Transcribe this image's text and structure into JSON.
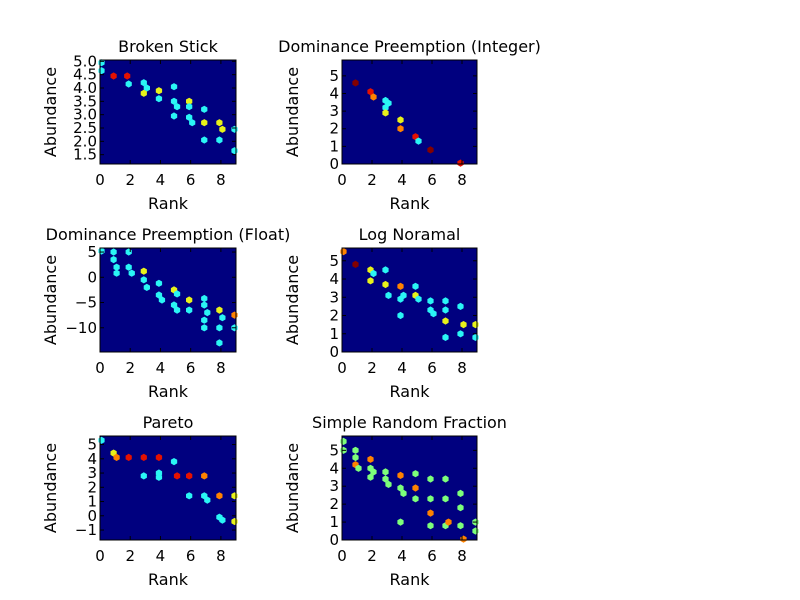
{
  "colors": {
    "background": "#00007f",
    "cyan": "#2af5f5",
    "green": "#7dff7a",
    "yellow": "#e8f21a",
    "orange": "#ff8200",
    "red": "#e41100",
    "darkred": "#830000"
  },
  "chart_data": [
    {
      "type": "heatmap",
      "title": "Broken Stick",
      "xlabel": "Rank",
      "ylabel": "Abundance",
      "xlim": [
        0,
        9
      ],
      "ylim": [
        1.15,
        5.05
      ],
      "xticks": [
        "0",
        "2",
        "4",
        "6",
        "8"
      ],
      "xtick_values": [
        0,
        2,
        4,
        6,
        8
      ],
      "yticks": [
        "1.5",
        "2.0",
        "2.5",
        "3.0",
        "3.5",
        "4.0",
        "4.5",
        "5.0"
      ],
      "ytick_values": [
        1.5,
        2.0,
        2.5,
        3.0,
        3.5,
        4.0,
        4.5,
        5.0
      ],
      "points": [
        {
          "x": 0.1,
          "y": 4.95,
          "c": "cyan"
        },
        {
          "x": 0.1,
          "y": 4.65,
          "c": "cyan"
        },
        {
          "x": 0.9,
          "y": 4.45,
          "c": "red"
        },
        {
          "x": 1.8,
          "y": 4.45,
          "c": "red"
        },
        {
          "x": 1.9,
          "y": 4.15,
          "c": "cyan"
        },
        {
          "x": 2.9,
          "y": 4.2,
          "c": "cyan"
        },
        {
          "x": 3.1,
          "y": 4.0,
          "c": "cyan"
        },
        {
          "x": 2.9,
          "y": 3.8,
          "c": "yellow"
        },
        {
          "x": 3.9,
          "y": 3.9,
          "c": "yellow"
        },
        {
          "x": 3.9,
          "y": 3.6,
          "c": "cyan"
        },
        {
          "x": 4.9,
          "y": 4.05,
          "c": "cyan"
        },
        {
          "x": 4.9,
          "y": 3.5,
          "c": "cyan"
        },
        {
          "x": 5.1,
          "y": 3.3,
          "c": "cyan"
        },
        {
          "x": 5.9,
          "y": 3.5,
          "c": "yellow"
        },
        {
          "x": 5.9,
          "y": 3.3,
          "c": "cyan"
        },
        {
          "x": 4.9,
          "y": 2.95,
          "c": "cyan"
        },
        {
          "x": 5.9,
          "y": 2.9,
          "c": "cyan"
        },
        {
          "x": 6.1,
          "y": 2.7,
          "c": "cyan"
        },
        {
          "x": 6.9,
          "y": 3.2,
          "c": "cyan"
        },
        {
          "x": 6.9,
          "y": 2.7,
          "c": "yellow"
        },
        {
          "x": 7.9,
          "y": 2.7,
          "c": "yellow"
        },
        {
          "x": 8.1,
          "y": 2.45,
          "c": "yellow"
        },
        {
          "x": 8.9,
          "y": 2.45,
          "c": "cyan"
        },
        {
          "x": 6.9,
          "y": 2.05,
          "c": "cyan"
        },
        {
          "x": 7.9,
          "y": 2.05,
          "c": "cyan"
        },
        {
          "x": 8.9,
          "y": 1.65,
          "c": "cyan"
        }
      ]
    },
    {
      "type": "heatmap",
      "title": "Dominance Preemption (Integer)",
      "xlabel": "Rank",
      "ylabel": "Abundance",
      "xlim": [
        0,
        9
      ],
      "ylim": [
        0,
        5.9
      ],
      "xticks": [
        "0",
        "2",
        "4",
        "6",
        "8"
      ],
      "xtick_values": [
        0,
        2,
        4,
        6,
        8
      ],
      "yticks": [
        "0",
        "1",
        "2",
        "3",
        "4",
        "5"
      ],
      "ytick_values": [
        0,
        1,
        2,
        3,
        4,
        5
      ],
      "points": [
        {
          "x": 0.9,
          "y": 4.6,
          "c": "darkred"
        },
        {
          "x": 1.9,
          "y": 4.1,
          "c": "red"
        },
        {
          "x": 2.1,
          "y": 3.8,
          "c": "orange"
        },
        {
          "x": 2.9,
          "y": 3.6,
          "c": "cyan"
        },
        {
          "x": 2.9,
          "y": 3.2,
          "c": "cyan"
        },
        {
          "x": 3.1,
          "y": 3.45,
          "c": "cyan"
        },
        {
          "x": 2.9,
          "y": 2.9,
          "c": "yellow"
        },
        {
          "x": 3.9,
          "y": 2.5,
          "c": "yellow"
        },
        {
          "x": 3.9,
          "y": 2.0,
          "c": "orange"
        },
        {
          "x": 4.9,
          "y": 1.55,
          "c": "red"
        },
        {
          "x": 5.1,
          "y": 1.3,
          "c": "cyan"
        },
        {
          "x": 5.9,
          "y": 0.8,
          "c": "darkred"
        },
        {
          "x": 7.9,
          "y": 0.05,
          "c": "red"
        }
      ]
    },
    {
      "type": "heatmap",
      "title": "Dominance Preemption (Float)",
      "xlabel": "Rank",
      "ylabel": "Abundance",
      "xlim": [
        0,
        9
      ],
      "ylim": [
        -14.8,
        5.8
      ],
      "xticks": [
        "0",
        "2",
        "4",
        "6",
        "8"
      ],
      "xtick_values": [
        0,
        2,
        4,
        6,
        8
      ],
      "yticks": [
        "5",
        "0",
        "−5",
        "−10"
      ],
      "ytick_values": [
        5,
        0,
        -5,
        -10
      ],
      "points": [
        {
          "x": 0.1,
          "y": 5.2,
          "c": "cyan"
        },
        {
          "x": 0.9,
          "y": 5.0,
          "c": "cyan"
        },
        {
          "x": 1.9,
          "y": 5.0,
          "c": "cyan"
        },
        {
          "x": 0.9,
          "y": 3.5,
          "c": "cyan"
        },
        {
          "x": 1.1,
          "y": 2.0,
          "c": "cyan"
        },
        {
          "x": 1.9,
          "y": 2.0,
          "c": "cyan"
        },
        {
          "x": 1.1,
          "y": 0.8,
          "c": "cyan"
        },
        {
          "x": 2.1,
          "y": 0.8,
          "c": "cyan"
        },
        {
          "x": 2.9,
          "y": 1.2,
          "c": "yellow"
        },
        {
          "x": 2.9,
          "y": -0.5,
          "c": "cyan"
        },
        {
          "x": 3.1,
          "y": -2.0,
          "c": "cyan"
        },
        {
          "x": 3.9,
          "y": -1.2,
          "c": "cyan"
        },
        {
          "x": 3.9,
          "y": -3.5,
          "c": "cyan"
        },
        {
          "x": 4.1,
          "y": -4.5,
          "c": "cyan"
        },
        {
          "x": 4.9,
          "y": -2.5,
          "c": "yellow"
        },
        {
          "x": 5.1,
          "y": -3.3,
          "c": "cyan"
        },
        {
          "x": 5.9,
          "y": -4.5,
          "c": "yellow"
        },
        {
          "x": 4.9,
          "y": -5.5,
          "c": "cyan"
        },
        {
          "x": 5.1,
          "y": -6.5,
          "c": "cyan"
        },
        {
          "x": 5.9,
          "y": -6.5,
          "c": "cyan"
        },
        {
          "x": 6.9,
          "y": -4.2,
          "c": "cyan"
        },
        {
          "x": 6.9,
          "y": -5.5,
          "c": "cyan"
        },
        {
          "x": 7.1,
          "y": -7.0,
          "c": "cyan"
        },
        {
          "x": 7.9,
          "y": -6.5,
          "c": "yellow"
        },
        {
          "x": 8.1,
          "y": -8.0,
          "c": "cyan"
        },
        {
          "x": 8.9,
          "y": -7.5,
          "c": "orange"
        },
        {
          "x": 6.9,
          "y": -8.5,
          "c": "cyan"
        },
        {
          "x": 6.9,
          "y": -10.0,
          "c": "cyan"
        },
        {
          "x": 7.9,
          "y": -10.0,
          "c": "cyan"
        },
        {
          "x": 8.9,
          "y": -10.0,
          "c": "cyan"
        },
        {
          "x": 7.9,
          "y": -13.0,
          "c": "cyan"
        }
      ]
    },
    {
      "type": "heatmap",
      "title": "Log Noramal",
      "xlabel": "Rank",
      "ylabel": "Abundance",
      "xlim": [
        0,
        9
      ],
      "ylim": [
        0,
        5.7
      ],
      "xticks": [
        "0",
        "2",
        "4",
        "6",
        "8"
      ],
      "xtick_values": [
        0,
        2,
        4,
        6,
        8
      ],
      "yticks": [
        "0",
        "1",
        "2",
        "3",
        "4",
        "5"
      ],
      "ytick_values": [
        0,
        1,
        2,
        3,
        4,
        5
      ],
      "points": [
        {
          "x": 0.1,
          "y": 5.5,
          "c": "orange"
        },
        {
          "x": 0.9,
          "y": 4.8,
          "c": "darkred"
        },
        {
          "x": 1.9,
          "y": 4.5,
          "c": "yellow"
        },
        {
          "x": 2.1,
          "y": 4.3,
          "c": "cyan"
        },
        {
          "x": 1.9,
          "y": 3.9,
          "c": "yellow"
        },
        {
          "x": 2.9,
          "y": 4.5,
          "c": "cyan"
        },
        {
          "x": 2.9,
          "y": 3.7,
          "c": "yellow"
        },
        {
          "x": 3.9,
          "y": 3.6,
          "c": "orange"
        },
        {
          "x": 4.9,
          "y": 3.6,
          "c": "cyan"
        },
        {
          "x": 3.1,
          "y": 3.1,
          "c": "cyan"
        },
        {
          "x": 3.9,
          "y": 2.9,
          "c": "cyan"
        },
        {
          "x": 4.1,
          "y": 3.1,
          "c": "cyan"
        },
        {
          "x": 4.9,
          "y": 3.1,
          "c": "yellow"
        },
        {
          "x": 5.1,
          "y": 2.9,
          "c": "cyan"
        },
        {
          "x": 5.9,
          "y": 2.8,
          "c": "cyan"
        },
        {
          "x": 6.9,
          "y": 2.8,
          "c": "cyan"
        },
        {
          "x": 3.9,
          "y": 2.0,
          "c": "cyan"
        },
        {
          "x": 5.9,
          "y": 2.3,
          "c": "cyan"
        },
        {
          "x": 6.1,
          "y": 2.1,
          "c": "cyan"
        },
        {
          "x": 6.9,
          "y": 2.3,
          "c": "cyan"
        },
        {
          "x": 6.9,
          "y": 1.7,
          "c": "yellow"
        },
        {
          "x": 7.9,
          "y": 2.5,
          "c": "cyan"
        },
        {
          "x": 8.1,
          "y": 1.5,
          "c": "yellow"
        },
        {
          "x": 8.9,
          "y": 1.5,
          "c": "yellow"
        },
        {
          "x": 6.9,
          "y": 0.8,
          "c": "cyan"
        },
        {
          "x": 7.9,
          "y": 1.0,
          "c": "cyan"
        },
        {
          "x": 8.9,
          "y": 0.8,
          "c": "cyan"
        }
      ]
    },
    {
      "type": "heatmap",
      "title": "Pareto",
      "xlabel": "Rank",
      "ylabel": "Abundance",
      "xlim": [
        0,
        9
      ],
      "ylim": [
        -1.7,
        5.6
      ],
      "xticks": [
        "0",
        "2",
        "4",
        "6",
        "8"
      ],
      "xtick_values": [
        0,
        2,
        4,
        6,
        8
      ],
      "yticks": [
        "5",
        "4",
        "3",
        "2",
        "1",
        "0",
        "−1"
      ],
      "ytick_values": [
        5,
        4,
        3,
        2,
        1,
        0,
        -1
      ],
      "points": [
        {
          "x": 0.1,
          "y": 5.3,
          "c": "cyan"
        },
        {
          "x": 0.9,
          "y": 4.4,
          "c": "yellow"
        },
        {
          "x": 1.1,
          "y": 4.1,
          "c": "orange"
        },
        {
          "x": 1.9,
          "y": 4.1,
          "c": "red"
        },
        {
          "x": 2.9,
          "y": 4.1,
          "c": "red"
        },
        {
          "x": 3.9,
          "y": 4.1,
          "c": "red"
        },
        {
          "x": 4.9,
          "y": 3.8,
          "c": "cyan"
        },
        {
          "x": 2.9,
          "y": 2.8,
          "c": "cyan"
        },
        {
          "x": 3.9,
          "y": 3.0,
          "c": "cyan"
        },
        {
          "x": 3.9,
          "y": 2.7,
          "c": "cyan"
        },
        {
          "x": 5.1,
          "y": 2.8,
          "c": "red"
        },
        {
          "x": 5.9,
          "y": 2.8,
          "c": "red"
        },
        {
          "x": 6.9,
          "y": 2.8,
          "c": "orange"
        },
        {
          "x": 5.9,
          "y": 1.4,
          "c": "cyan"
        },
        {
          "x": 6.9,
          "y": 1.4,
          "c": "cyan"
        },
        {
          "x": 7.1,
          "y": 1.1,
          "c": "cyan"
        },
        {
          "x": 7.9,
          "y": 1.4,
          "c": "orange"
        },
        {
          "x": 8.9,
          "y": 1.4,
          "c": "yellow"
        },
        {
          "x": 7.9,
          "y": -0.1,
          "c": "cyan"
        },
        {
          "x": 8.1,
          "y": -0.3,
          "c": "cyan"
        },
        {
          "x": 8.9,
          "y": -0.4,
          "c": "yellow"
        }
      ]
    },
    {
      "type": "heatmap",
      "title": "Simple Random Fraction",
      "xlabel": "Rank",
      "ylabel": "Abundance",
      "xlim": [
        0,
        9
      ],
      "ylim": [
        0,
        5.8
      ],
      "xticks": [
        "0",
        "2",
        "4",
        "6",
        "8"
      ],
      "xtick_values": [
        0,
        2,
        4,
        6,
        8
      ],
      "yticks": [
        "0",
        "1",
        "2",
        "3",
        "4",
        "5"
      ],
      "ytick_values": [
        0,
        1,
        2,
        3,
        4,
        5
      ],
      "points": [
        {
          "x": 0.1,
          "y": 5.5,
          "c": "green"
        },
        {
          "x": 0.1,
          "y": 5.0,
          "c": "green"
        },
        {
          "x": 0.9,
          "y": 5.0,
          "c": "green"
        },
        {
          "x": 0.9,
          "y": 4.6,
          "c": "green"
        },
        {
          "x": 0.9,
          "y": 4.2,
          "c": "orange"
        },
        {
          "x": 1.1,
          "y": 4.0,
          "c": "green"
        },
        {
          "x": 1.9,
          "y": 4.5,
          "c": "orange"
        },
        {
          "x": 1.9,
          "y": 4.0,
          "c": "green"
        },
        {
          "x": 2.1,
          "y": 3.8,
          "c": "green"
        },
        {
          "x": 1.9,
          "y": 3.5,
          "c": "green"
        },
        {
          "x": 2.9,
          "y": 3.8,
          "c": "green"
        },
        {
          "x": 2.9,
          "y": 3.4,
          "c": "green"
        },
        {
          "x": 3.1,
          "y": 3.1,
          "c": "green"
        },
        {
          "x": 3.9,
          "y": 3.6,
          "c": "orange"
        },
        {
          "x": 3.9,
          "y": 2.9,
          "c": "green"
        },
        {
          "x": 4.1,
          "y": 2.6,
          "c": "green"
        },
        {
          "x": 4.9,
          "y": 3.7,
          "c": "green"
        },
        {
          "x": 4.9,
          "y": 2.9,
          "c": "orange"
        },
        {
          "x": 5.9,
          "y": 3.4,
          "c": "green"
        },
        {
          "x": 6.9,
          "y": 3.4,
          "c": "green"
        },
        {
          "x": 4.9,
          "y": 2.3,
          "c": "green"
        },
        {
          "x": 5.9,
          "y": 2.3,
          "c": "green"
        },
        {
          "x": 6.9,
          "y": 2.3,
          "c": "green"
        },
        {
          "x": 7.9,
          "y": 2.6,
          "c": "green"
        },
        {
          "x": 7.9,
          "y": 1.8,
          "c": "green"
        },
        {
          "x": 5.9,
          "y": 1.5,
          "c": "orange"
        },
        {
          "x": 3.9,
          "y": 1.0,
          "c": "green"
        },
        {
          "x": 5.9,
          "y": 0.8,
          "c": "green"
        },
        {
          "x": 6.9,
          "y": 0.8,
          "c": "green"
        },
        {
          "x": 7.1,
          "y": 1.0,
          "c": "orange"
        },
        {
          "x": 7.9,
          "y": 0.8,
          "c": "green"
        },
        {
          "x": 8.9,
          "y": 1.0,
          "c": "green"
        },
        {
          "x": 8.9,
          "y": 0.5,
          "c": "green"
        },
        {
          "x": 8.1,
          "y": 0.05,
          "c": "orange"
        }
      ]
    }
  ]
}
